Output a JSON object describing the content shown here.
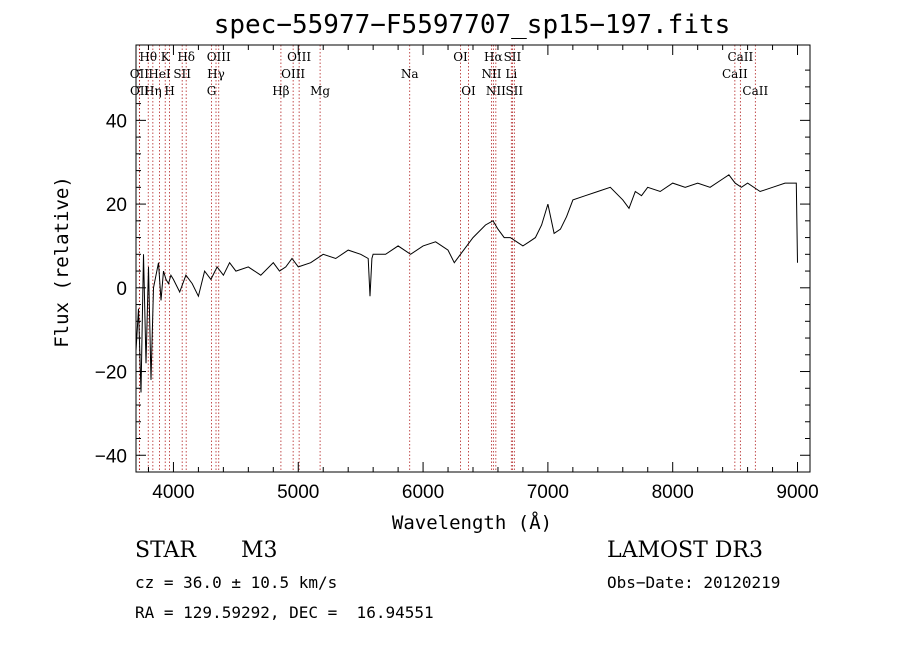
{
  "chart_data": {
    "type": "line",
    "title": "spec−55977−F5597707_sp15−197.fits",
    "xlabel": "Wavelength (Å)",
    "ylabel": "Flux (relative)",
    "xlim": [
      3700,
      9100
    ],
    "ylim": [
      -44,
      58
    ],
    "xticks": [
      4000,
      5000,
      6000,
      7000,
      8000,
      9000
    ],
    "yticks": [
      -40,
      -20,
      0,
      20,
      40
    ],
    "ytick_labels": [
      "−40",
      "−20",
      "0",
      "20",
      "40"
    ],
    "series": [
      {
        "name": "spectrum",
        "x": [
          3700,
          3720,
          3740,
          3760,
          3780,
          3800,
          3820,
          3840,
          3860,
          3880,
          3900,
          3920,
          3940,
          3960,
          3980,
          4000,
          4050,
          4100,
          4150,
          4200,
          4250,
          4300,
          4350,
          4400,
          4450,
          4500,
          4600,
          4700,
          4800,
          4850,
          4900,
          4950,
          5000,
          5100,
          5200,
          5300,
          5400,
          5500,
          5560,
          5575,
          5590,
          5600,
          5700,
          5800,
          5900,
          6000,
          6100,
          6200,
          6250,
          6300,
          6400,
          6500,
          6560,
          6600,
          6650,
          6700,
          6750,
          6800,
          6850,
          6900,
          6950,
          7000,
          7050,
          7100,
          7150,
          7200,
          7300,
          7400,
          7500,
          7600,
          7650,
          7700,
          7750,
          7800,
          7900,
          8000,
          8100,
          8200,
          8300,
          8400,
          8450,
          8500,
          8550,
          8600,
          8700,
          8800,
          8900,
          8950,
          8990,
          9000
        ],
        "y": [
          -15,
          -5,
          -25,
          8,
          -18,
          5,
          -22,
          0,
          3,
          6,
          -3,
          4,
          2,
          1,
          3,
          2,
          -1,
          3,
          1,
          -2,
          4,
          2,
          5,
          3,
          6,
          4,
          5,
          3,
          6,
          4,
          5,
          7,
          5,
          6,
          8,
          7,
          9,
          8,
          7,
          -2,
          7,
          8,
          8,
          10,
          8,
          10,
          11,
          9,
          6,
          8,
          12,
          15,
          16,
          14,
          12,
          12,
          11,
          10,
          11,
          12,
          15,
          20,
          13,
          14,
          17,
          21,
          22,
          23,
          24,
          21,
          19,
          23,
          22,
          24,
          23,
          25,
          24,
          25,
          24,
          26,
          27,
          25,
          24,
          25,
          23,
          24,
          25,
          25,
          25,
          6
        ]
      }
    ],
    "spectral_lines": [
      {
        "label": "Hθ",
        "wavelength": 3798,
        "row": 0
      },
      {
        "label": "OII",
        "wavelength": 3727,
        "row": 1
      },
      {
        "label": "OII",
        "wavelength": 3729,
        "row": 2
      },
      {
        "label": "K",
        "wavelength": 3934,
        "row": 0
      },
      {
        "label": "HeI",
        "wavelength": 3889,
        "row": 1
      },
      {
        "label": "Hη",
        "wavelength": 3835,
        "row": 2
      },
      {
        "label": "SII",
        "wavelength": 4070,
        "row": 1
      },
      {
        "label": "H",
        "wavelength": 3969,
        "row": 2
      },
      {
        "label": "Hδ",
        "wavelength": 4102,
        "row": 0
      },
      {
        "label": "OIII",
        "wavelength": 4363,
        "row": 0
      },
      {
        "label": "Hγ",
        "wavelength": 4341,
        "row": 1
      },
      {
        "label": "G",
        "wavelength": 4305,
        "row": 2
      },
      {
        "label": "OIII",
        "wavelength": 5007,
        "row": 0
      },
      {
        "label": "OIII",
        "wavelength": 4959,
        "row": 1
      },
      {
        "label": "Hβ",
        "wavelength": 4861,
        "row": 2
      },
      {
        "label": "Mg",
        "wavelength": 5175,
        "row": 2
      },
      {
        "label": "Na",
        "wavelength": 5893,
        "row": 1
      },
      {
        "label": "OI",
        "wavelength": 6300,
        "row": 0
      },
      {
        "label": "OI",
        "wavelength": 6364,
        "row": 2
      },
      {
        "label": "Hα",
        "wavelength": 6563,
        "row": 0
      },
      {
        "label": "SII",
        "wavelength": 6716,
        "row": 0
      },
      {
        "label": "NII",
        "wavelength": 6548,
        "row": 1
      },
      {
        "label": "Li",
        "wavelength": 6707,
        "row": 1
      },
      {
        "label": "NII",
        "wavelength": 6583,
        "row": 2
      },
      {
        "label": "SII",
        "wavelength": 6731,
        "row": 2
      },
      {
        "label": "CaII",
        "wavelength": 8542,
        "row": 0
      },
      {
        "label": "CaII",
        "wavelength": 8498,
        "row": 1
      },
      {
        "label": "CaII",
        "wavelength": 8662,
        "row": 2
      }
    ]
  },
  "footer": {
    "class_label": "STAR",
    "subclass": "M3",
    "survey": "LAMOST DR3",
    "redshift_line": "cz = 36.0 ± 10.5 km/s",
    "obs_date_line": "Obs−Date: 20120219",
    "coords_line": "RA = 129.59292, DEC =  16.94551"
  },
  "colors": {
    "line_marker": "#b22222",
    "spectrum": "#000000",
    "axes": "#000000"
  }
}
